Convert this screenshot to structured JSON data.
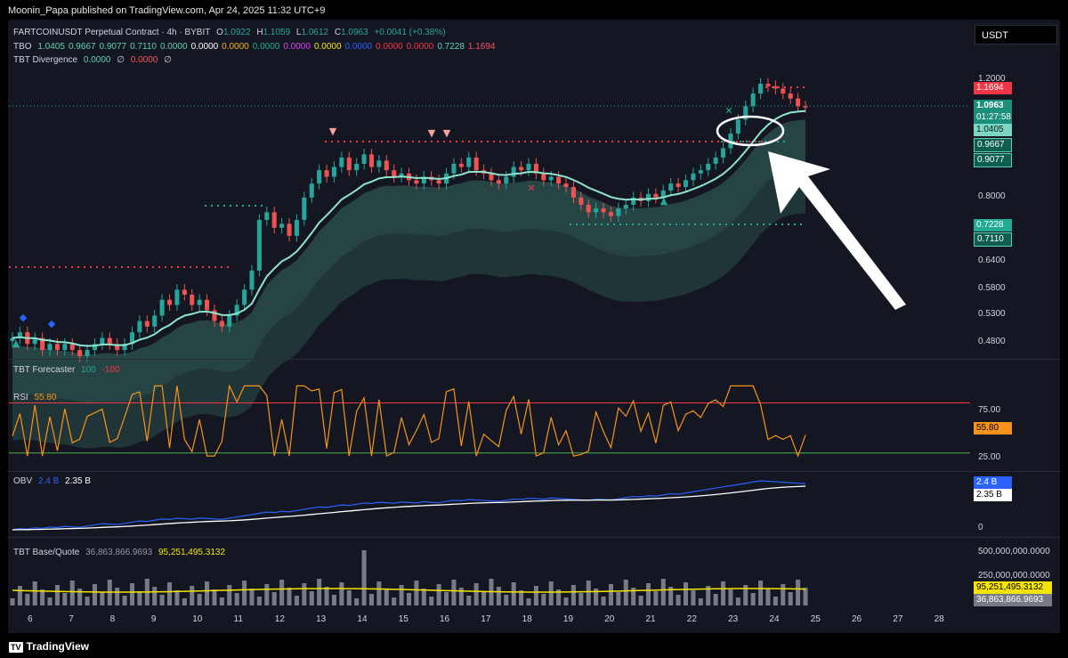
{
  "header": {
    "publisher": "Moonin_Papa published on TradingView.com, Apr 24, 2025 11:32 UTC+9"
  },
  "symbol": {
    "name": "FARTCOINUSDT Perpetual Contract · 4h · BYBIT",
    "o_label": "O",
    "o": "1.0922",
    "h_label": "H",
    "h": "1.1059",
    "l_label": "L",
    "l": "1.0612",
    "c_label": "C",
    "c": "1.0963",
    "change": "+0.0041 (+0.38%)"
  },
  "tbo": {
    "label": "TBO",
    "values": [
      "1.0405",
      "0.9667",
      "0.9077",
      "0.7110",
      "0.0000",
      "0.0000",
      "0.0000",
      "0.0000",
      "0.0000",
      "0.0000",
      "0.0000",
      "0.0000",
      "0.0000",
      "0.7228",
      "1.1694"
    ],
    "colors": [
      "#5fd1b3",
      "#5fd1b3",
      "#5fd1b3",
      "#5fd1b3",
      "#5fd1b3",
      "#ffffff",
      "#f7b21b",
      "#22ab94",
      "#e040fb",
      "#f7e21b",
      "#2962ff",
      "#f23645",
      "#f23645",
      "#5fd1b3",
      "#f7525f"
    ]
  },
  "divergence": {
    "label": "TBT Divergence",
    "v1": "0.0000",
    "v2": "∅",
    "v3": "0.0000",
    "v4": "∅"
  },
  "currency": "USDT",
  "price_axis": [
    "1.2000",
    "0.8000",
    "0.6400",
    "0.5800",
    "0.5300",
    "0.4800"
  ],
  "price_tags": {
    "p_1694": "1.1694",
    "current": "1.0963",
    "countdown": "01:27:58",
    "p_1040": "1.0405",
    "p_9667": "0.9667",
    "p_9077": "0.9077",
    "p_7228": "0.7228",
    "p_7110": "0.7110"
  },
  "forecaster": {
    "label": "TBT Forecaster",
    "v1": "100",
    "v2": "-100"
  },
  "rsi": {
    "label": "RSI",
    "value": "55.80",
    "axis": [
      "75.00",
      "25.00"
    ],
    "tag": "55.80"
  },
  "obv": {
    "label": "OBV",
    "v1": "2.4 B",
    "v2": "2.35 B",
    "axis": "0",
    "tag1": "2.4 B",
    "tag2": "2.35 B"
  },
  "base_quote": {
    "label": "TBT Base/Quote",
    "v1": "36,863,866.9693",
    "v2": "95,251,495.3132",
    "axis": [
      "500,000,000.0000",
      "250,000,000.0000"
    ],
    "tag1": "95,251,495.3132",
    "tag2": "36,863,866.9693"
  },
  "dates": [
    "6",
    "7",
    "8",
    "9",
    "10",
    "11",
    "12",
    "13",
    "14",
    "15",
    "16",
    "17",
    "18",
    "19",
    "20",
    "21",
    "22",
    "23",
    "24",
    "25",
    "26",
    "27",
    "28"
  ],
  "chart_data": {
    "type": "candlestick",
    "closes": [
      0.49,
      0.5,
      0.48,
      0.49,
      0.47,
      0.48,
      0.47,
      0.48,
      0.47,
      0.46,
      0.47,
      0.48,
      0.49,
      0.48,
      0.47,
      0.48,
      0.5,
      0.52,
      0.51,
      0.53,
      0.56,
      0.55,
      0.58,
      0.57,
      0.55,
      0.56,
      0.54,
      0.52,
      0.51,
      0.53,
      0.55,
      0.58,
      0.62,
      0.74,
      0.76,
      0.72,
      0.73,
      0.7,
      0.74,
      0.8,
      0.84,
      0.88,
      0.86,
      0.89,
      0.92,
      0.88,
      0.9,
      0.93,
      0.89,
      0.91,
      0.88,
      0.86,
      0.87,
      0.85,
      0.84,
      0.86,
      0.85,
      0.84,
      0.87,
      0.9,
      0.89,
      0.92,
      0.88,
      0.87,
      0.85,
      0.84,
      0.86,
      0.89,
      0.88,
      0.9,
      0.87,
      0.85,
      0.86,
      0.84,
      0.83,
      0.8,
      0.78,
      0.76,
      0.77,
      0.76,
      0.75,
      0.77,
      0.78,
      0.8,
      0.79,
      0.81,
      0.8,
      0.82,
      0.84,
      0.83,
      0.85,
      0.87,
      0.88,
      0.9,
      0.92,
      0.95,
      1.0,
      1.05,
      1.1,
      1.15,
      1.19,
      1.18,
      1.17,
      1.15,
      1.13,
      1.1,
      1.0963
    ],
    "ylim": [
      0.46,
      1.22
    ],
    "markers": [
      "▼",
      "▼",
      "▼",
      "▲",
      "▲",
      "◆",
      "◆",
      "✕",
      "✕"
    ],
    "rsi_levels": [
      75,
      25
    ],
    "last_price": 1.0963
  },
  "colors": {
    "up": "#26a69a",
    "down": "#ef5350",
    "ma": "#8ee4cc",
    "cloud": "#2f5b52",
    "rsi": "#f7931a",
    "obv": "#2962ff",
    "volume": "#787b86",
    "base": "#f5e400"
  }
}
